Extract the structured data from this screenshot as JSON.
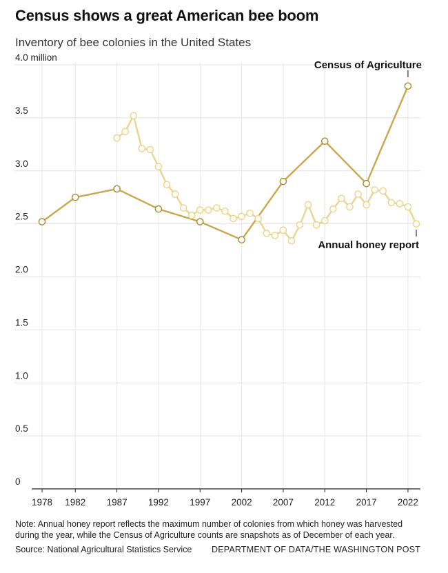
{
  "title": "Census shows a great American bee boom",
  "subtitle": "Inventory of bee colonies in the United States",
  "note": "Note: Annual honey report reflects the maximum number of colonies from which honey was harvested during the year, while the Census of Agriculture counts are snapshots as of December of each year.",
  "source": "Source: National Agricultural Statistics Service",
  "credit": "DEPARTMENT OF DATA/THE WASHINGTON POST",
  "chart_data": {
    "type": "line",
    "title": "Census shows a great American bee boom",
    "subtitle": "Inventory of bee colonies in the United States",
    "ylim": [
      0,
      4.0
    ],
    "xlim": [
      1978,
      2023
    ],
    "grid": true,
    "y_ticks": [
      {
        "value": 0,
        "label": "0"
      },
      {
        "value": 0.5,
        "label": "0.5"
      },
      {
        "value": 1.0,
        "label": "1.0"
      },
      {
        "value": 1.5,
        "label": "1.5"
      },
      {
        "value": 2.0,
        "label": "2.0"
      },
      {
        "value": 2.5,
        "label": "2.5"
      },
      {
        "value": 3.0,
        "label": "3.0"
      },
      {
        "value": 3.5,
        "label": "3.5"
      },
      {
        "value": 4.0,
        "label": "4.0 million"
      }
    ],
    "x_ticks": [
      {
        "value": 1978,
        "label": "1978"
      },
      {
        "value": 1982,
        "label": "1982"
      },
      {
        "value": 1987,
        "label": "1987"
      },
      {
        "value": 1992,
        "label": "1992"
      },
      {
        "value": 1997,
        "label": "1997"
      },
      {
        "value": 2002,
        "label": "2002"
      },
      {
        "value": 2007,
        "label": "2007"
      },
      {
        "value": 2012,
        "label": "2012"
      },
      {
        "value": 2017,
        "label": "2017"
      },
      {
        "value": 2022,
        "label": "2022"
      }
    ],
    "series": [
      {
        "name": "Census of Agriculture",
        "color": "#c9a84c",
        "x": [
          1978,
          1982,
          1987,
          1992,
          1997,
          2002,
          2007,
          2012,
          2017,
          2022
        ],
        "y": [
          2.52,
          2.75,
          2.83,
          2.64,
          2.52,
          2.35,
          2.9,
          3.28,
          2.88,
          3.8
        ]
      },
      {
        "name": "Annual honey report",
        "color": "#ead48f",
        "x": [
          1987,
          1988,
          1989,
          1990,
          1991,
          1992,
          1993,
          1994,
          1995,
          1996,
          1997,
          1998,
          1999,
          2000,
          2001,
          2002,
          2003,
          2004,
          2005,
          2006,
          2007,
          2008,
          2009,
          2010,
          2011,
          2012,
          2013,
          2014,
          2015,
          2016,
          2017,
          2018,
          2019,
          2020,
          2021,
          2022,
          2023
        ],
        "y": [
          3.31,
          3.37,
          3.52,
          3.21,
          3.2,
          3.04,
          2.87,
          2.78,
          2.65,
          2.58,
          2.63,
          2.63,
          2.65,
          2.62,
          2.55,
          2.57,
          2.6,
          2.55,
          2.41,
          2.39,
          2.44,
          2.34,
          2.49,
          2.68,
          2.49,
          2.53,
          2.64,
          2.74,
          2.66,
          2.78,
          2.68,
          2.82,
          2.81,
          2.7,
          2.69,
          2.66,
          2.5
        ]
      }
    ]
  }
}
